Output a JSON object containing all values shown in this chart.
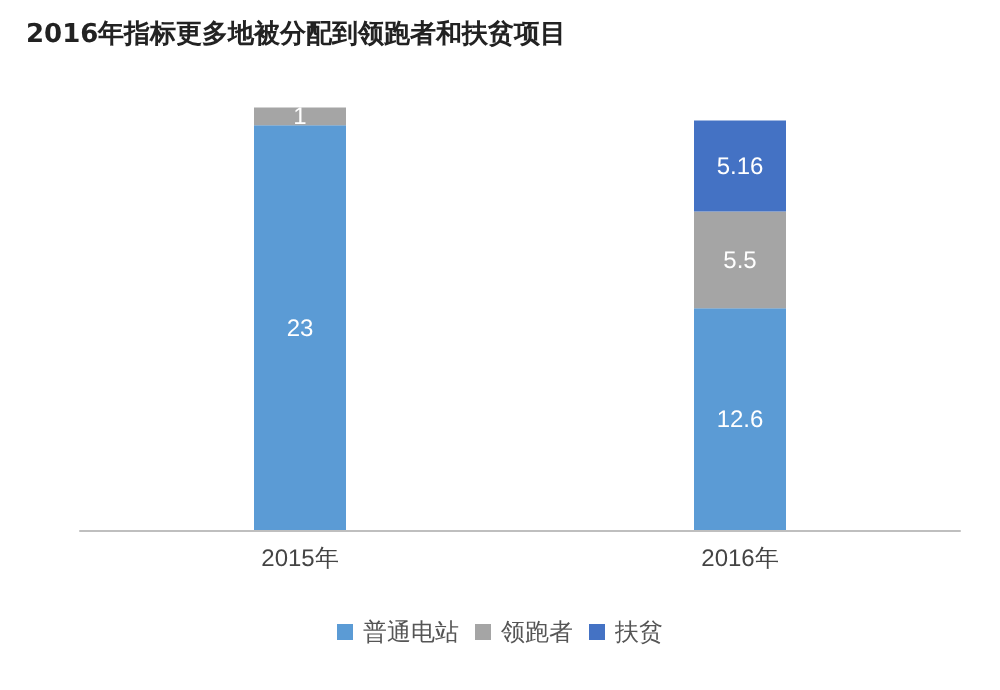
{
  "chart_data": {
    "type": "bar",
    "title": "2016年指标更多地被分配到领跑者和扶贫项目",
    "categories": [
      "2015年",
      "2016年"
    ],
    "series": [
      {
        "name": "普通电站",
        "color": "#5b9bd5",
        "values": [
          23,
          12.6
        ]
      },
      {
        "name": "领跑者",
        "color": "#a5a5a5",
        "values": [
          1,
          5.5
        ]
      },
      {
        "name": "扶贫",
        "color": "#4472c4",
        "values": [
          null,
          5.16
        ]
      }
    ],
    "stacked": true,
    "data_labels": true,
    "legend": "bottom"
  }
}
